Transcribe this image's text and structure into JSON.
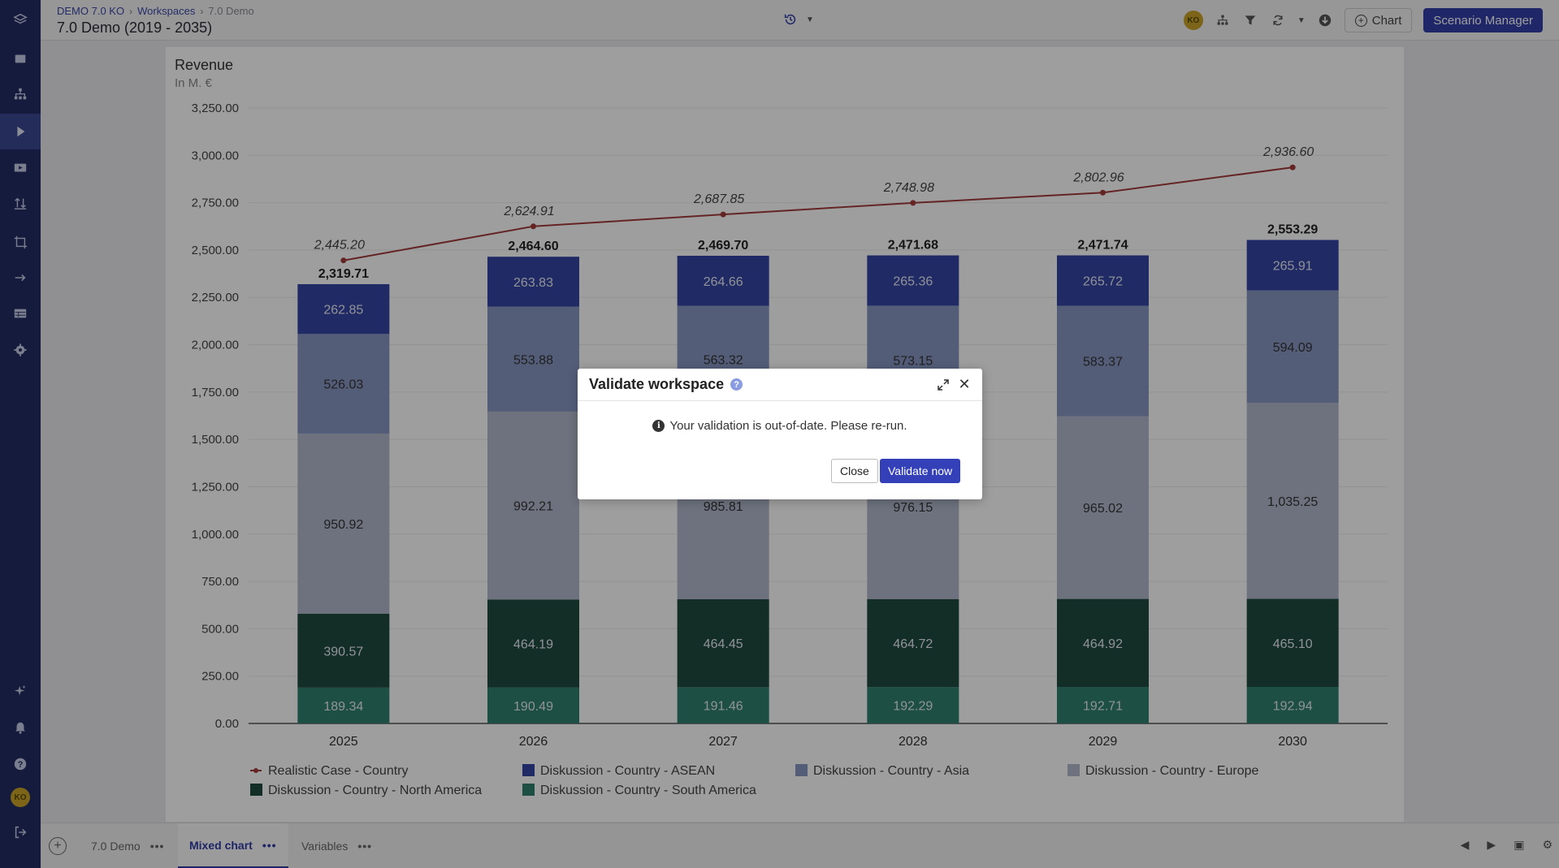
{
  "header": {
    "breadcrumb": [
      "DEMO 7.0 KO",
      "Workspaces",
      "7.0 Demo"
    ],
    "title": "7.0 Demo (2019 - 2035)",
    "user_initials": "KO",
    "chart_label": "Chart",
    "scenario_manager_label": "Scenario Manager"
  },
  "sidebar": {
    "items": [
      "layers-icon",
      "inbox-icon",
      "hierarchy-icon",
      "play-icon",
      "presentation-icon",
      "import-export-icon",
      "crop-icon",
      "arrow-link-icon",
      "table-icon",
      "gear-icon"
    ],
    "bottom": [
      "sparkle-icon",
      "bell-icon",
      "help-icon",
      "avatar",
      "logout-icon"
    ],
    "user_initials": "KO"
  },
  "tabs": [
    {
      "label": "7.0 Demo",
      "active": false
    },
    {
      "label": "Mixed chart",
      "active": true
    },
    {
      "label": "Variables",
      "active": false
    }
  ],
  "modal": {
    "title": "Validate workspace",
    "message": "Your validation is out-of-date. Please re-run.",
    "close_label": "Close",
    "validate_label": "Validate now"
  },
  "chart_data": {
    "type": "bar",
    "stacked": true,
    "title": "Revenue",
    "subtitle": "In M. €",
    "categories": [
      "2025",
      "2026",
      "2027",
      "2028",
      "2029",
      "2030"
    ],
    "ylim": [
      0,
      3250
    ],
    "yticks": [
      "0.00",
      "250.00",
      "500.00",
      "750.00",
      "1,000.00",
      "1,250.00",
      "1,500.00",
      "1,750.00",
      "2,000.00",
      "2,250.00",
      "2,500.00",
      "2,750.00",
      "3,000.00",
      "3,250.00"
    ],
    "series": [
      {
        "name": "Diskussion - Country - South America",
        "color": "#2f8070",
        "values": [
          189.34,
          190.49,
          191.46,
          192.29,
          192.71,
          192.94
        ],
        "labels": [
          "189.34",
          "190.49",
          "191.46",
          "192.29",
          "192.71",
          "192.94"
        ]
      },
      {
        "name": "Diskussion - Country - North America",
        "color": "#1f4a40",
        "values": [
          390.57,
          464.19,
          464.45,
          464.72,
          464.92,
          465.1
        ],
        "labels": [
          "390.57",
          "464.19",
          "464.45",
          "464.72",
          "464.92",
          "465.10"
        ]
      },
      {
        "name": "Diskussion - Country - Europe",
        "color": "#b1b9cc",
        "values": [
          950.92,
          992.21,
          985.81,
          976.15,
          965.02,
          1035.25
        ],
        "labels": [
          "950.92",
          "992.21",
          "985.81",
          "976.15",
          "965.02",
          "1,035.25"
        ]
      },
      {
        "name": "Diskussion - Country - Asia",
        "color": "#8796c2",
        "values": [
          526.03,
          553.88,
          563.32,
          573.15,
          583.37,
          594.09
        ],
        "labels": [
          "526.03",
          "553.88",
          "563.32",
          "573.15",
          "583.37",
          "594.09"
        ]
      },
      {
        "name": "Diskussion - Country - ASEAN",
        "color": "#3546a3",
        "values": [
          262.85,
          263.83,
          264.66,
          265.36,
          265.72,
          265.91
        ],
        "labels": [
          "262.85",
          "263.83",
          "264.66",
          "265.36",
          "265.72",
          "265.91"
        ]
      }
    ],
    "totals": [
      "2,319.71",
      "2,464.60",
      "2,469.70",
      "2,471.68",
      "2,471.74",
      "2,553.29"
    ],
    "line": {
      "name": "Realistic Case - Country",
      "color": "#a33a3a",
      "values": [
        2445.2,
        2624.91,
        2687.85,
        2748.98,
        2802.96,
        2936.6
      ],
      "labels": [
        "2,445.20",
        "2,624.91",
        "2,687.85",
        "2,748.98",
        "2,802.96",
        "2,936.60"
      ]
    },
    "legend": [
      {
        "name": "Realistic Case - Country",
        "kind": "line",
        "color": "#a33a3a"
      },
      {
        "name": "Diskussion - Country - ASEAN",
        "kind": "box",
        "color": "#3546a3"
      },
      {
        "name": "Diskussion - Country - Asia",
        "kind": "box",
        "color": "#8796c2"
      },
      {
        "name": "Diskussion - Country - Europe",
        "kind": "box",
        "color": "#b1b9cc"
      },
      {
        "name": "Diskussion - Country - North America",
        "kind": "box",
        "color": "#1f4a40"
      },
      {
        "name": "Diskussion - Country - South America",
        "kind": "box",
        "color": "#2f8070"
      }
    ],
    "legend_position": "bottom",
    "grid": true
  }
}
